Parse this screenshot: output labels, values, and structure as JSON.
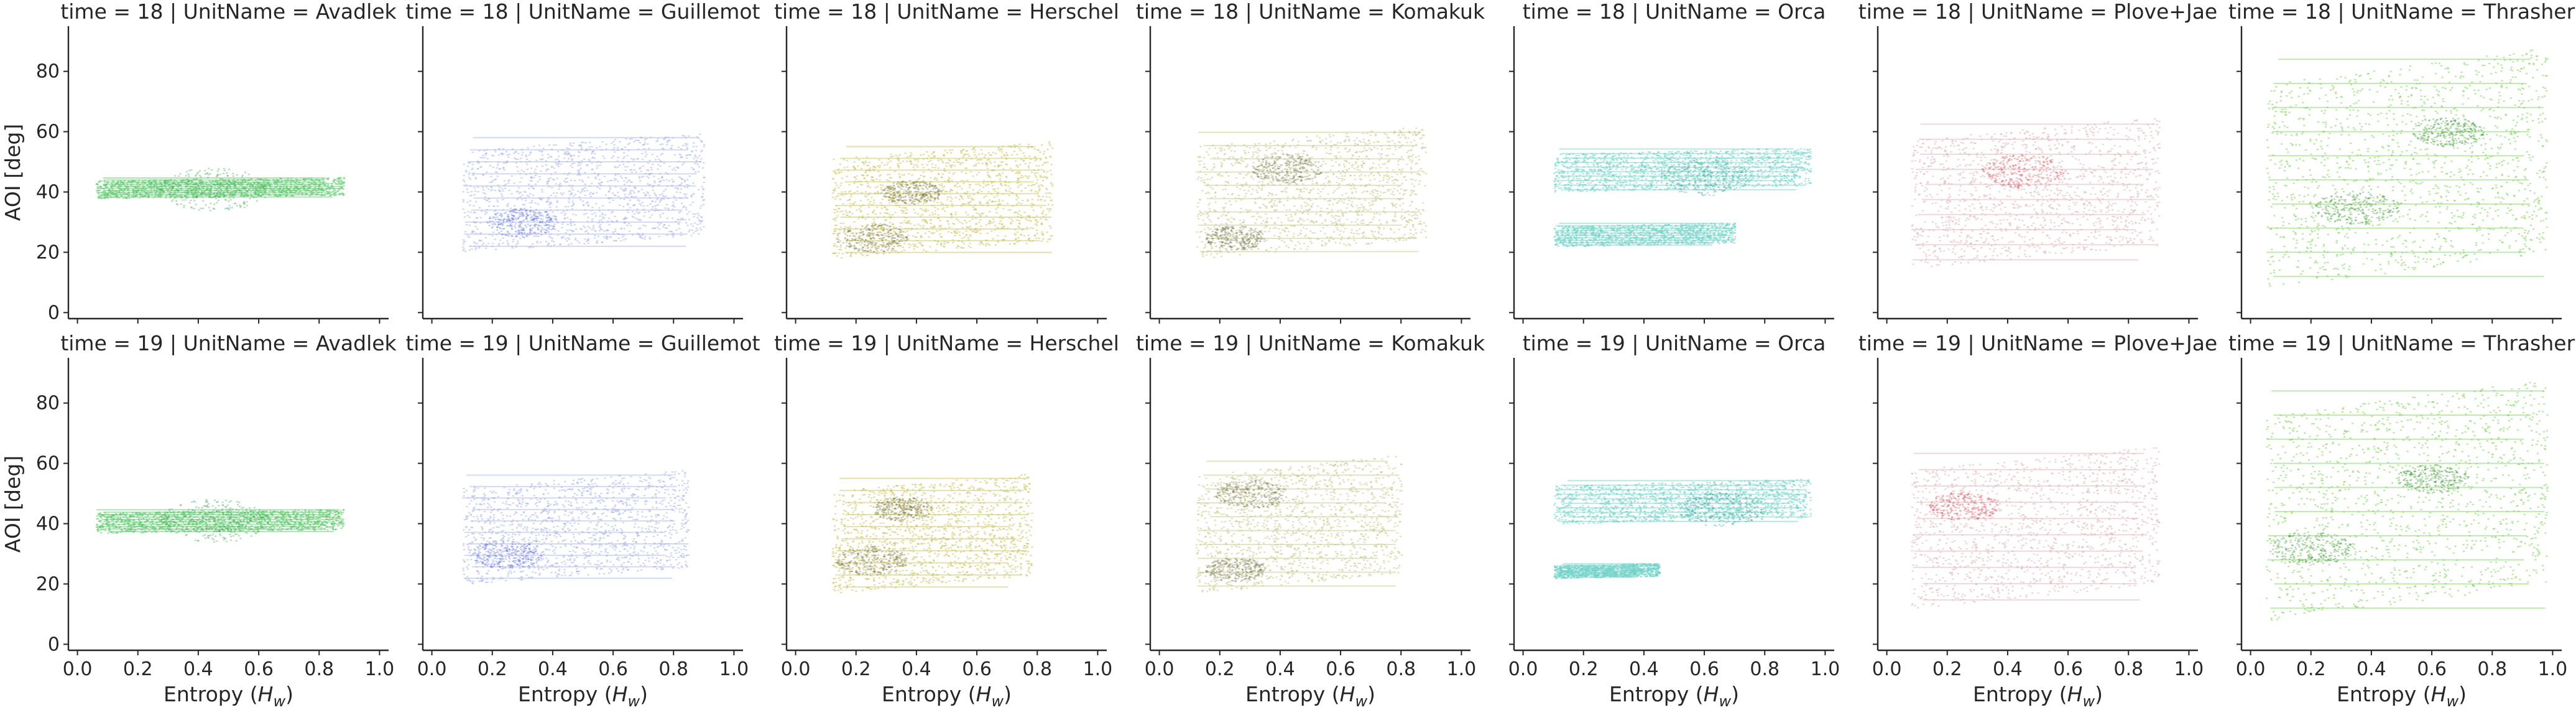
{
  "chart_data": {
    "type": "scatter",
    "layout": {
      "rows": 2,
      "cols": 7,
      "sharex": true,
      "sharey": true
    },
    "xlabel_pre": "Entropy (",
    "xlabel_var": "H",
    "xlabel_sub": "w",
    "xlabel_post": ")",
    "ylabel": "AOI [deg]",
    "xlim": [
      -0.03,
      1.03
    ],
    "ylim": [
      -2,
      95
    ],
    "xticks": [
      0.0,
      0.2,
      0.4,
      0.6,
      0.8,
      1.0
    ],
    "xtick_labels": [
      "0.0",
      "0.2",
      "0.4",
      "0.6",
      "0.8",
      "1.0"
    ],
    "yticks": [
      0,
      20,
      40,
      60,
      80
    ],
    "ytick_labels": [
      "0",
      "20",
      "40",
      "60",
      "80"
    ],
    "grid": false,
    "units": [
      {
        "name": "Avadlek",
        "color": "#5cc86c",
        "dark": "#2f9c44"
      },
      {
        "name": "Guillemot",
        "color": "#a9b3e6",
        "dark": "#5266d6"
      },
      {
        "name": "Herschel",
        "color": "#c9c25e",
        "dark": "#6f6a2c"
      },
      {
        "name": "Komakuk",
        "color": "#c6c78a",
        "dark": "#6c6c3c"
      },
      {
        "name": "Orca",
        "color": "#6fd2c8",
        "dark": "#2f9b94"
      },
      {
        "name": "Plove+Jae",
        "color": "#dcb4b8",
        "dark": "#d04a58"
      },
      {
        "name": "Thrasher",
        "color": "#7fd25c",
        "dark": "#2f8c28"
      }
    ],
    "panels": [
      {
        "title": "time = 18 | UnitName = Avadlek",
        "time": 18,
        "unit": 0,
        "blobs": [
          {
            "x": [
              0.06,
              0.88
            ],
            "y": [
              38,
              45
            ],
            "density": 1.0
          }
        ],
        "hot": [
          {
            "x": 0.45,
            "y": 41,
            "r": 0.18
          }
        ]
      },
      {
        "title": "time = 18 | UnitName = Guillemot",
        "time": 18,
        "unit": 1,
        "blobs": [
          {
            "x": [
              0.1,
              0.9
            ],
            "y": [
              20,
              60
            ],
            "density": 1.0
          }
        ],
        "hot": [
          {
            "x": 0.3,
            "y": 30,
            "r": 0.12
          }
        ]
      },
      {
        "title": "time = 18 | UnitName = Herschel",
        "time": 18,
        "unit": 2,
        "blobs": [
          {
            "x": [
              0.12,
              0.85
            ],
            "y": [
              18,
              57
            ],
            "density": 1.0
          }
        ],
        "hot": [
          {
            "x": 0.25,
            "y": 25,
            "r": 0.12
          },
          {
            "x": 0.38,
            "y": 40,
            "r": 0.1
          }
        ]
      },
      {
        "title": "time = 18 | UnitName = Komakuk",
        "time": 18,
        "unit": 3,
        "blobs": [
          {
            "x": [
              0.12,
              0.88
            ],
            "y": [
              18,
              62
            ],
            "density": 1.0
          }
        ],
        "hot": [
          {
            "x": 0.25,
            "y": 25,
            "r": 0.1
          },
          {
            "x": 0.42,
            "y": 48,
            "r": 0.12
          }
        ]
      },
      {
        "title": "time = 18 | UnitName = Orca",
        "time": 18,
        "unit": 4,
        "blobs": [
          {
            "x": [
              0.1,
              0.95
            ],
            "y": [
              40,
              55
            ],
            "density": 1.0
          },
          {
            "x": [
              0.1,
              0.7
            ],
            "y": [
              22,
              30
            ],
            "density": 0.8
          }
        ],
        "hot": [
          {
            "x": 0.6,
            "y": 45,
            "r": 0.15
          }
        ]
      },
      {
        "title": "time = 18 | UnitName = Plove+Jae",
        "time": 18,
        "unit": 5,
        "blobs": [
          {
            "x": [
              0.08,
              0.9
            ],
            "y": [
              15,
              65
            ],
            "density": 1.0
          }
        ],
        "hot": [
          {
            "x": 0.45,
            "y": 47,
            "r": 0.14
          }
        ]
      },
      {
        "title": "time = 18 | UnitName = Thrasher",
        "time": 18,
        "unit": 6,
        "blobs": [
          {
            "x": [
              0.05,
              0.98
            ],
            "y": [
              8,
              88
            ],
            "density": 1.0
          }
        ],
        "hot": [
          {
            "x": 0.35,
            "y": 35,
            "r": 0.14
          },
          {
            "x": 0.65,
            "y": 60,
            "r": 0.12
          }
        ]
      },
      {
        "title": "time = 19 | UnitName = Avadlek",
        "time": 19,
        "unit": 0,
        "blobs": [
          {
            "x": [
              0.06,
              0.88
            ],
            "y": [
              37,
              45
            ],
            "density": 1.0
          }
        ],
        "hot": [
          {
            "x": 0.45,
            "y": 41,
            "r": 0.18
          }
        ]
      },
      {
        "title": "time = 19 | UnitName = Guillemot",
        "time": 19,
        "unit": 1,
        "blobs": [
          {
            "x": [
              0.1,
              0.85
            ],
            "y": [
              20,
              58
            ],
            "density": 1.0
          }
        ],
        "hot": [
          {
            "x": 0.25,
            "y": 30,
            "r": 0.12
          }
        ]
      },
      {
        "title": "time = 19 | UnitName = Herschel",
        "time": 19,
        "unit": 2,
        "blobs": [
          {
            "x": [
              0.12,
              0.78
            ],
            "y": [
              17,
              57
            ],
            "density": 1.0
          }
        ],
        "hot": [
          {
            "x": 0.25,
            "y": 28,
            "r": 0.12
          },
          {
            "x": 0.35,
            "y": 45,
            "r": 0.1
          }
        ]
      },
      {
        "title": "time = 19 | UnitName = Komakuk",
        "time": 19,
        "unit": 3,
        "blobs": [
          {
            "x": [
              0.12,
              0.8
            ],
            "y": [
              17,
              63
            ],
            "density": 1.0
          }
        ],
        "hot": [
          {
            "x": 0.25,
            "y": 25,
            "r": 0.1
          },
          {
            "x": 0.3,
            "y": 50,
            "r": 0.12
          }
        ]
      },
      {
        "title": "time = 19 | UnitName = Orca",
        "time": 19,
        "unit": 4,
        "blobs": [
          {
            "x": [
              0.1,
              0.95
            ],
            "y": [
              40,
              55
            ],
            "density": 1.0
          },
          {
            "x": [
              0.1,
              0.45
            ],
            "y": [
              22,
              27
            ],
            "density": 0.7
          }
        ],
        "hot": [
          {
            "x": 0.65,
            "y": 45,
            "r": 0.14
          }
        ]
      },
      {
        "title": "time = 19 | UnitName = Plove+Jae",
        "time": 19,
        "unit": 5,
        "blobs": [
          {
            "x": [
              0.08,
              0.9
            ],
            "y": [
              12,
              66
            ],
            "density": 1.0
          }
        ],
        "hot": [
          {
            "x": 0.25,
            "y": 46,
            "r": 0.12
          }
        ]
      },
      {
        "title": "time = 19 | UnitName = Thrasher",
        "time": 19,
        "unit": 6,
        "blobs": [
          {
            "x": [
              0.05,
              0.98
            ],
            "y": [
              8,
              88
            ],
            "density": 1.0
          }
        ],
        "hot": [
          {
            "x": 0.2,
            "y": 32,
            "r": 0.14
          },
          {
            "x": 0.6,
            "y": 55,
            "r": 0.12
          }
        ]
      }
    ]
  }
}
